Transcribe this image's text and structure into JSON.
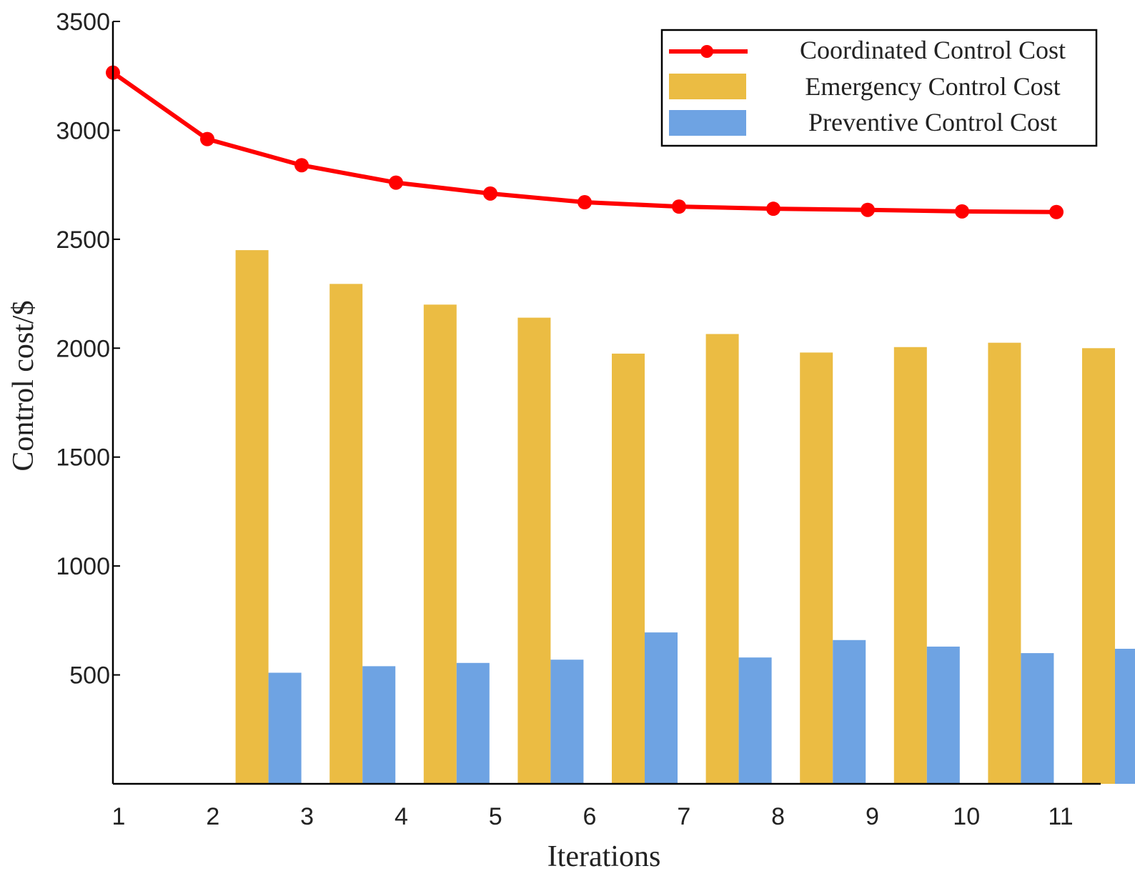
{
  "chart_data": {
    "type": "bar",
    "title": "",
    "xlabel": "Iterations",
    "ylabel": "Control cost/$",
    "ylim": [
      0,
      3500
    ],
    "yticks": [
      500,
      1000,
      1500,
      2000,
      2500,
      3000,
      3500
    ],
    "categories": [
      "1",
      "2",
      "3",
      "4",
      "5",
      "6",
      "7",
      "8",
      "9",
      "10",
      "11"
    ],
    "grid": false,
    "legend_position": "top-right",
    "series": [
      {
        "name": "Coordinated Control Cost",
        "kind": "line",
        "color": "#ff0000",
        "values": [
          3265,
          2960,
          2840,
          2760,
          2710,
          2670,
          2650,
          2640,
          2635,
          2628,
          2625
        ]
      },
      {
        "name": "Emergency Control Cost",
        "kind": "bar",
        "color": "#ebbc43",
        "values": [
          null,
          2450,
          2295,
          2200,
          2140,
          1975,
          2065,
          1980,
          2005,
          2025,
          2000
        ]
      },
      {
        "name": "Preventive Control Cost",
        "kind": "bar",
        "color": "#6ea3e3",
        "values": [
          null,
          510,
          540,
          555,
          570,
          695,
          580,
          660,
          630,
          600,
          620
        ]
      }
    ]
  }
}
